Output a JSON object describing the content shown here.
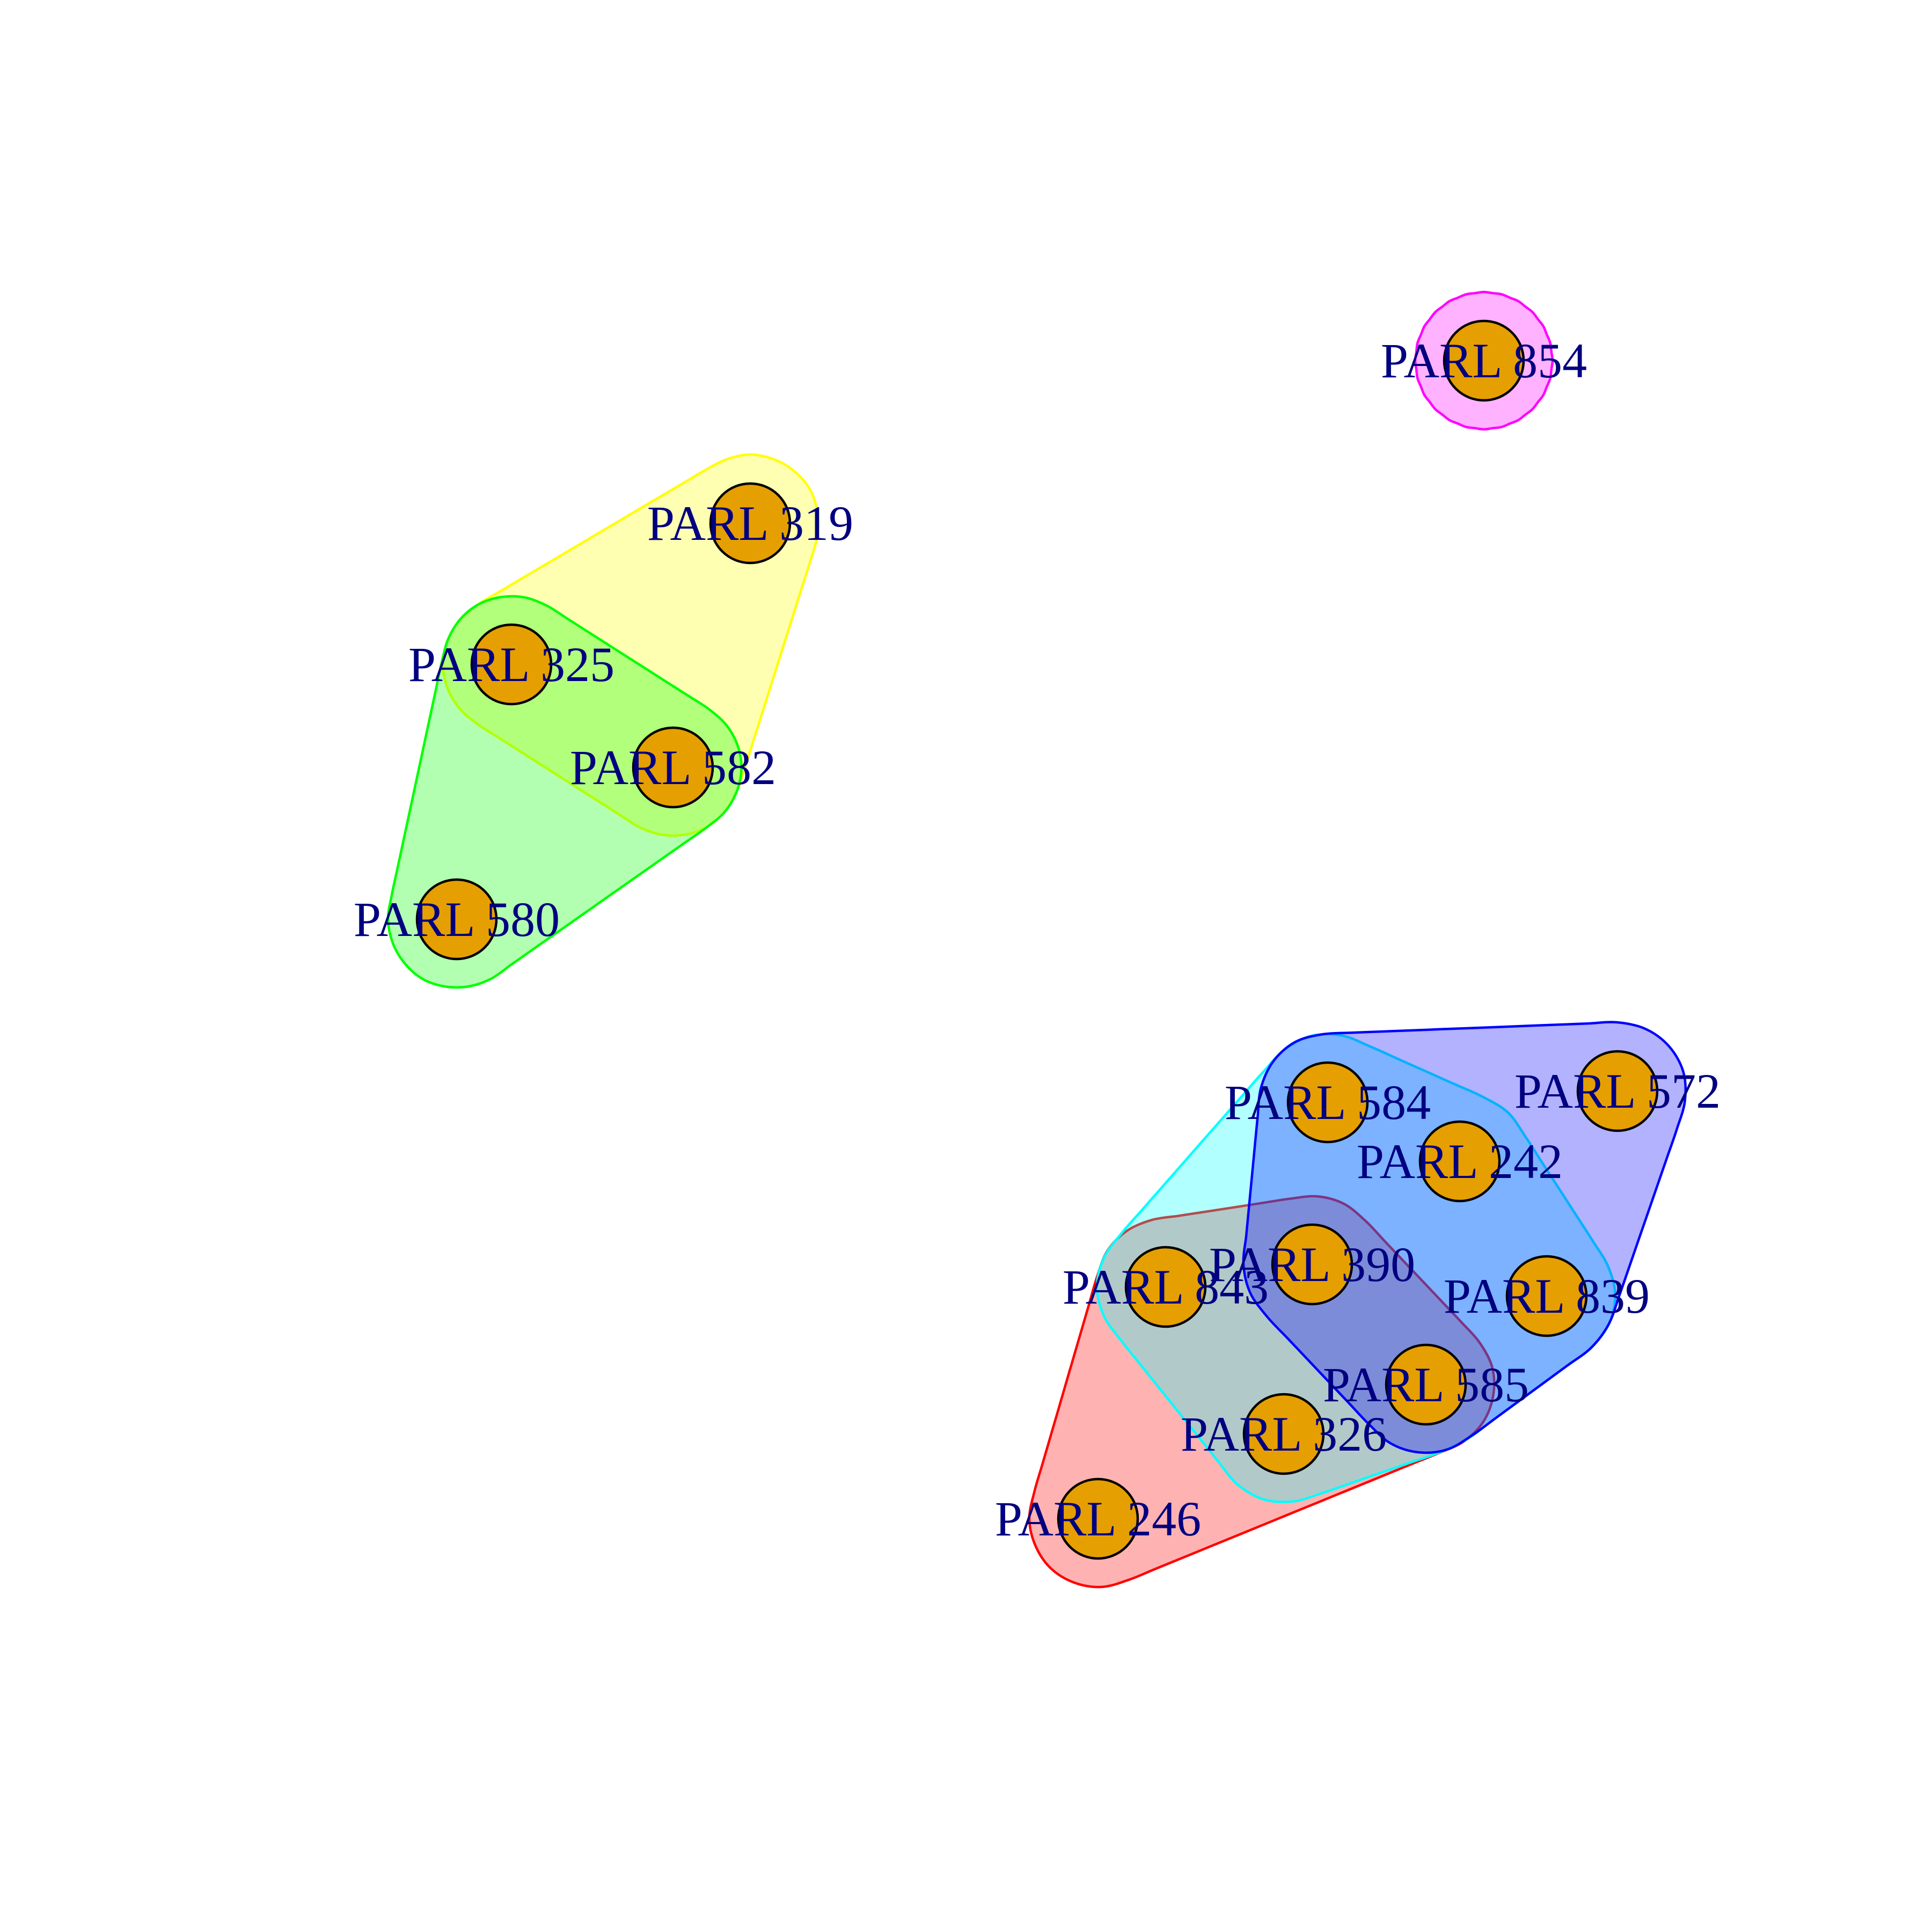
{
  "diagram": {
    "type": "network-clusters",
    "node_color": "#E69F00",
    "label_color": "#000080",
    "nodes": [
      {
        "id": "PARL 854",
        "label": "PARL 854"
      },
      {
        "id": "PARL 319",
        "label": "PARL 319"
      },
      {
        "id": "PARL 325",
        "label": "PARL 325"
      },
      {
        "id": "PARL 582",
        "label": "PARL 582"
      },
      {
        "id": "PARL 580",
        "label": "PARL 580"
      },
      {
        "id": "PARL 584",
        "label": "PARL 584"
      },
      {
        "id": "PARL 572",
        "label": "PARL 572"
      },
      {
        "id": "PARL 242",
        "label": "PARL 242"
      },
      {
        "id": "PARL 390",
        "label": "PARL 390"
      },
      {
        "id": "PARL 843",
        "label": "PARL 843"
      },
      {
        "id": "PARL 839",
        "label": "PARL 839"
      },
      {
        "id": "PARL 585",
        "label": "PARL 585"
      },
      {
        "id": "PARL 326",
        "label": "PARL 326"
      },
      {
        "id": "PARL 246",
        "label": "PARL 246"
      }
    ],
    "groups": [
      {
        "members": [
          "PARL 854"
        ],
        "color": "#FF00FF"
      },
      {
        "members": [
          "PARL 319",
          "PARL 325",
          "PARL 582"
        ],
        "color": "#FFFF00"
      },
      {
        "members": [
          "PARL 325",
          "PARL 582",
          "PARL 580"
        ],
        "color": "#00FF00"
      },
      {
        "members": [
          "PARL 246",
          "PARL 843",
          "PARL 390",
          "PARL 585",
          "PARL 326"
        ],
        "color": "#FF0000"
      },
      {
        "members": [
          "PARL 584",
          "PARL 843",
          "PARL 390",
          "PARL 326",
          "PARL 585",
          "PARL 839",
          "PARL 242"
        ],
        "color": "#00FFFF"
      },
      {
        "members": [
          "PARL 584",
          "PARL 572",
          "PARL 242",
          "PARL 390",
          "PARL 839",
          "PARL 585"
        ],
        "color": "#0000FF"
      }
    ]
  }
}
